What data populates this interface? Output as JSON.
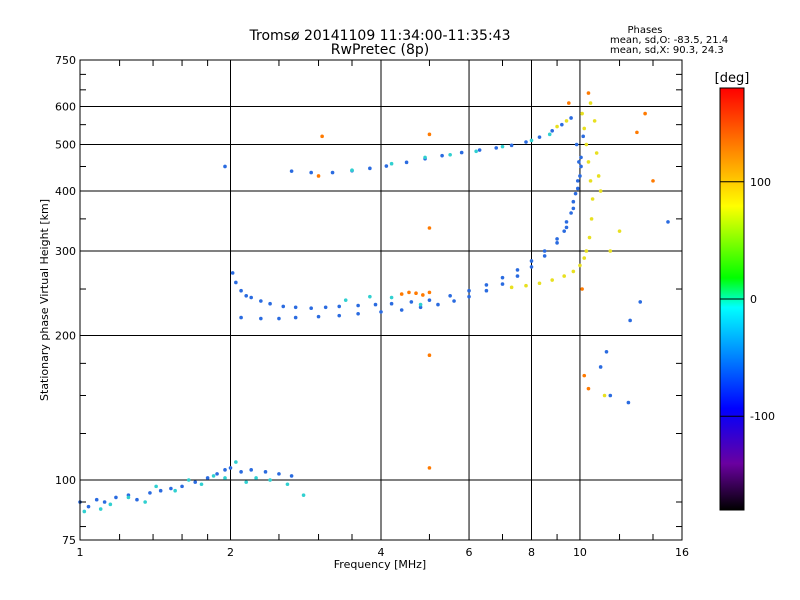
{
  "chart_data": {
    "type": "scatter",
    "title": "Tromsø 20141109 11:34:00-11:35:43",
    "subtitle": "RwPretec (8p)",
    "xlabel": "Frequency [MHz]",
    "ylabel": "Stationary phase Virtual Height [km]",
    "x_scale": "log",
    "y_scale": "log",
    "xlim": [
      1,
      16
    ],
    "ylim": [
      75,
      750
    ],
    "x_ticks": [
      1,
      2,
      4,
      6,
      8,
      10,
      16
    ],
    "y_ticks": [
      75,
      100,
      200,
      300,
      400,
      500,
      600,
      750
    ],
    "grid": true,
    "legend_text": {
      "heading": "Phases",
      "line1": "mean, sd,O: -83.5, 21.4",
      "line2": "mean, sd,X:  90.3, 24.3"
    },
    "colorbar": {
      "label": "[deg]",
      "range": [
        -180,
        180
      ],
      "ticks": [
        100,
        0,
        -100
      ],
      "colors": [
        "#000000",
        "#6a00a0",
        "#0000ff",
        "#0080ff",
        "#00ffff",
        "#00ff00",
        "#ffff00",
        "#ff8000",
        "#ff0000"
      ]
    },
    "series": [
      {
        "color": "#2a6be0",
        "points": [
          [
            1.0,
            90
          ],
          [
            1.04,
            88
          ],
          [
            1.08,
            91
          ],
          [
            1.12,
            90
          ],
          [
            1.18,
            92
          ],
          [
            1.25,
            93
          ],
          [
            1.3,
            91
          ],
          [
            1.38,
            94
          ],
          [
            1.45,
            95
          ],
          [
            1.52,
            96
          ],
          [
            1.6,
            97
          ],
          [
            1.7,
            99
          ],
          [
            1.8,
            101
          ],
          [
            1.88,
            103
          ],
          [
            1.95,
            105
          ],
          [
            2.0,
            106
          ],
          [
            2.1,
            104
          ],
          [
            2.2,
            105
          ],
          [
            2.35,
            104
          ],
          [
            2.5,
            103
          ],
          [
            2.65,
            102
          ],
          [
            2.02,
            270
          ],
          [
            2.05,
            258
          ],
          [
            2.1,
            248
          ],
          [
            2.15,
            242
          ],
          [
            2.2,
            240
          ],
          [
            2.3,
            236
          ],
          [
            2.4,
            233
          ],
          [
            2.55,
            230
          ],
          [
            2.7,
            229
          ],
          [
            2.9,
            228
          ],
          [
            3.1,
            229
          ],
          [
            3.3,
            230
          ],
          [
            3.6,
            231
          ],
          [
            3.9,
            232
          ],
          [
            4.2,
            233
          ],
          [
            4.6,
            235
          ],
          [
            5.0,
            237
          ],
          [
            5.5,
            242
          ],
          [
            6.0,
            248
          ],
          [
            6.5,
            255
          ],
          [
            7.0,
            264
          ],
          [
            7.5,
            274
          ],
          [
            8.0,
            286
          ],
          [
            8.5,
            300
          ],
          [
            9.0,
            318
          ],
          [
            9.4,
            345
          ],
          [
            9.7,
            380
          ],
          [
            9.9,
            420
          ],
          [
            10.05,
            470
          ],
          [
            10.15,
            520
          ],
          [
            2.1,
            218
          ],
          [
            2.3,
            217
          ],
          [
            2.5,
            217
          ],
          [
            2.7,
            218
          ],
          [
            3.0,
            219
          ],
          [
            3.3,
            220
          ],
          [
            3.6,
            222
          ],
          [
            4.0,
            224
          ],
          [
            4.4,
            226
          ],
          [
            4.8,
            229
          ],
          [
            5.2,
            232
          ],
          [
            5.6,
            236
          ],
          [
            6.0,
            241
          ],
          [
            6.5,
            248
          ],
          [
            7.0,
            256
          ],
          [
            7.5,
            266
          ],
          [
            8.0,
            278
          ],
          [
            8.5,
            293
          ],
          [
            9.0,
            312
          ],
          [
            9.4,
            336
          ],
          [
            9.7,
            368
          ],
          [
            9.9,
            405
          ],
          [
            10.05,
            450
          ],
          [
            2.65,
            440
          ],
          [
            2.9,
            437
          ],
          [
            3.2,
            437
          ],
          [
            3.5,
            441
          ],
          [
            3.8,
            446
          ],
          [
            4.1,
            451
          ],
          [
            4.5,
            459
          ],
          [
            4.9,
            467
          ],
          [
            5.3,
            474
          ],
          [
            5.8,
            481
          ],
          [
            6.3,
            487
          ],
          [
            6.8,
            492
          ],
          [
            7.3,
            498
          ],
          [
            7.8,
            506
          ],
          [
            8.3,
            518
          ],
          [
            8.8,
            534
          ],
          [
            9.2,
            550
          ],
          [
            9.6,
            568
          ],
          [
            9.85,
            500
          ],
          [
            9.95,
            460
          ],
          [
            10.0,
            430
          ],
          [
            9.8,
            395
          ],
          [
            9.6,
            360
          ],
          [
            9.3,
            330
          ],
          [
            11.5,
            150
          ],
          [
            12.5,
            145
          ],
          [
            13.2,
            235
          ],
          [
            12.6,
            215
          ],
          [
            11.3,
            185
          ],
          [
            11.0,
            172
          ],
          [
            15.0,
            345
          ],
          [
            1.95,
            450
          ]
        ]
      },
      {
        "color": "#e8e020",
        "points": [
          [
            10.1,
            580
          ],
          [
            10.2,
            540
          ],
          [
            10.3,
            500
          ],
          [
            10.4,
            460
          ],
          [
            10.5,
            420
          ],
          [
            10.6,
            385
          ],
          [
            10.55,
            350
          ],
          [
            10.45,
            320
          ],
          [
            10.3,
            300
          ],
          [
            10.2,
            290
          ],
          [
            10.0,
            280
          ],
          [
            9.7,
            272
          ],
          [
            9.3,
            266
          ],
          [
            8.8,
            261
          ],
          [
            8.3,
            257
          ],
          [
            7.8,
            254
          ],
          [
            7.3,
            252
          ],
          [
            10.5,
            610
          ],
          [
            10.7,
            560
          ],
          [
            10.8,
            480
          ],
          [
            10.9,
            430
          ],
          [
            11.0,
            400
          ],
          [
            11.5,
            300
          ],
          [
            11.2,
            150
          ],
          [
            12.0,
            330
          ],
          [
            9.0,
            545
          ],
          [
            9.4,
            560
          ]
        ]
      },
      {
        "color": "#ff7a00",
        "points": [
          [
            4.4,
            244
          ],
          [
            4.55,
            246
          ],
          [
            4.7,
            245
          ],
          [
            4.85,
            243
          ],
          [
            5.0,
            246
          ],
          [
            3.0,
            430
          ],
          [
            3.05,
            520
          ],
          [
            5.0,
            525
          ],
          [
            5.0,
            335
          ],
          [
            5.0,
            182
          ],
          [
            5.0,
            106
          ],
          [
            10.1,
            250
          ],
          [
            10.2,
            165
          ],
          [
            10.4,
            155
          ],
          [
            13.0,
            530
          ],
          [
            13.5,
            580
          ],
          [
            14.0,
            420
          ],
          [
            9.5,
            610
          ],
          [
            10.4,
            640
          ]
        ]
      },
      {
        "color": "#30d0d0",
        "points": [
          [
            1.02,
            86
          ],
          [
            1.1,
            87
          ],
          [
            1.15,
            89
          ],
          [
            1.25,
            92
          ],
          [
            1.35,
            90
          ],
          [
            1.42,
            97
          ],
          [
            1.55,
            95
          ],
          [
            1.65,
            100
          ],
          [
            1.75,
            98
          ],
          [
            1.85,
            102
          ],
          [
            1.95,
            101
          ],
          [
            2.05,
            109
          ],
          [
            2.15,
            99
          ],
          [
            2.25,
            101
          ],
          [
            2.4,
            100
          ],
          [
            2.6,
            98
          ],
          [
            2.8,
            93
          ],
          [
            3.4,
            237
          ],
          [
            3.8,
            241
          ],
          [
            4.2,
            240
          ],
          [
            4.8,
            232
          ],
          [
            3.5,
            442
          ],
          [
            4.2,
            456
          ],
          [
            4.9,
            470
          ],
          [
            5.5,
            476
          ],
          [
            6.2,
            484
          ],
          [
            7.0,
            495
          ],
          [
            8.0,
            510
          ],
          [
            8.7,
            525
          ]
        ]
      }
    ]
  }
}
